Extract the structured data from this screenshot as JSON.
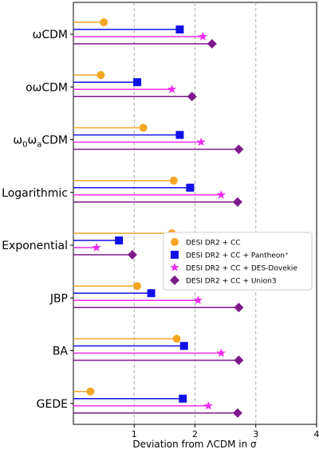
{
  "chart_data": {
    "type": "lollipop",
    "xlabel": "Deviation from ΛCDM in σ",
    "xlim": [
      0,
      4
    ],
    "x_ticks": [
      "1",
      "2",
      "3",
      "4"
    ],
    "vertical_reference_lines": [
      1,
      2,
      3
    ],
    "grid": "dashed vertical lines at 1, 2, 3",
    "legend_placement": "center-right",
    "categories": [
      "ωCDM",
      "oωCDM",
      "ω0ωaCDM",
      "Logarithmic",
      "Exponential",
      "JBP",
      "BA",
      "GEDE"
    ],
    "series": [
      {
        "name": "DESI DR2 + CC",
        "color": "#f5a623",
        "marker": "circle",
        "values": [
          0.5,
          0.45,
          1.15,
          1.65,
          1.62,
          1.05,
          1.7,
          0.28
        ]
      },
      {
        "name": "DESI DR2 + CC + Pantheon⁺",
        "color": "#1010e8",
        "marker": "square",
        "values": [
          1.75,
          1.05,
          1.75,
          1.92,
          0.75,
          1.28,
          1.82,
          1.8
        ]
      },
      {
        "name": "DESI DR2 + CC + DES-Dovekie",
        "color": "#ee2cee",
        "marker": "star",
        "values": [
          2.13,
          1.62,
          2.1,
          2.43,
          0.38,
          2.05,
          2.43,
          2.22
        ]
      },
      {
        "name": "DESI DR2 + CC + Union3",
        "color": "#7d1a8a",
        "marker": "diamond",
        "values": [
          2.28,
          1.95,
          2.72,
          2.7,
          0.97,
          2.72,
          2.72,
          2.7
        ]
      }
    ]
  }
}
